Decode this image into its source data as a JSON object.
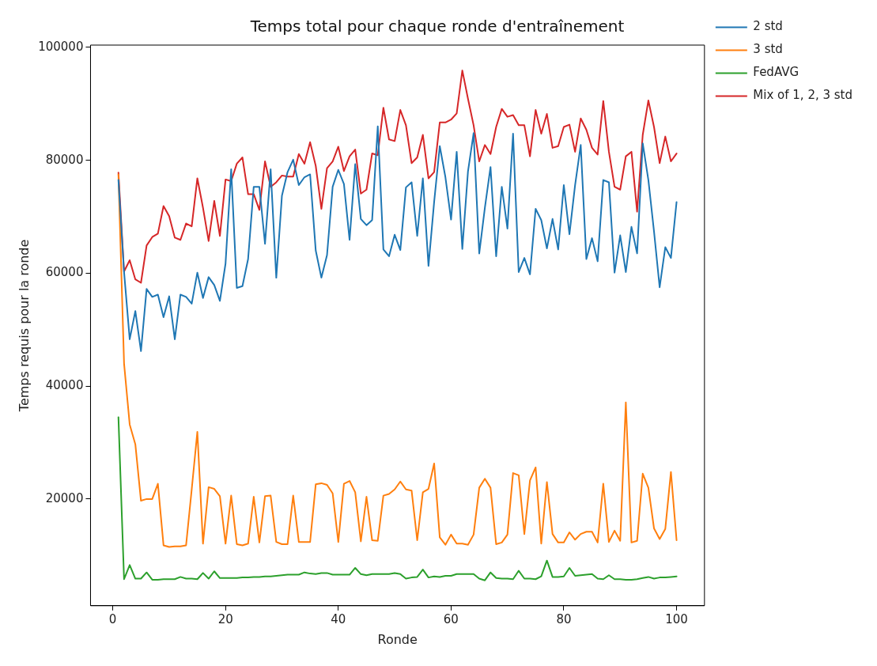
{
  "chart_data": {
    "type": "line",
    "title": "Temps total pour chaque ronde d'entraînement",
    "xlabel": "Ronde",
    "ylabel": "Temps requis pour la ronde",
    "x": [
      1,
      2,
      3,
      4,
      5,
      6,
      7,
      8,
      9,
      10,
      11,
      12,
      13,
      14,
      15,
      16,
      17,
      18,
      19,
      20,
      21,
      22,
      23,
      24,
      25,
      26,
      27,
      28,
      29,
      30,
      31,
      32,
      33,
      34,
      35,
      36,
      37,
      38,
      39,
      40,
      41,
      42,
      43,
      44,
      45,
      46,
      47,
      48,
      49,
      50,
      51,
      52,
      53,
      54,
      55,
      56,
      57,
      58,
      59,
      60,
      61,
      62,
      63,
      64,
      65,
      66,
      67,
      68,
      69,
      70,
      71,
      72,
      73,
      74,
      75,
      76,
      77,
      78,
      79,
      80,
      81,
      82,
      83,
      84,
      85,
      86,
      87,
      88,
      89,
      90,
      91,
      92,
      93,
      94,
      95,
      96,
      97,
      98,
      99,
      100
    ],
    "series": [
      {
        "name": "2 std",
        "color": "#1f77b4",
        "values": [
          76500,
          60200,
          48300,
          53300,
          46200,
          57200,
          55800,
          56200,
          52200,
          55900,
          48300,
          56200,
          55800,
          54600,
          60100,
          55600,
          59300,
          57900,
          55100,
          61700,
          78400,
          57400,
          57700,
          62500,
          75300,
          75300,
          65200,
          78400,
          59200,
          73700,
          77900,
          80100,
          75600,
          77000,
          77500,
          64000,
          59200,
          63200,
          75300,
          78300,
          75800,
          65900,
          79300,
          69600,
          68500,
          69400,
          86000,
          64200,
          63000,
          66800,
          64100,
          75200,
          76100,
          66600,
          76800,
          61300,
          72600,
          82500,
          77000,
          69500,
          81500,
          64300,
          78000,
          84800,
          63500,
          71600,
          78800,
          63000,
          75300,
          67900,
          84700,
          60200,
          62700,
          59800,
          71400,
          69400,
          64400,
          69600,
          64200,
          75600,
          66900,
          75600,
          82700,
          62500,
          66200,
          62100,
          76500,
          76100,
          60100,
          66700,
          60200,
          68200,
          63500,
          83000,
          76500,
          67400,
          57500,
          64600,
          62700,
          72600
        ]
      },
      {
        "name": "3 std",
        "color": "#ff7f0e",
        "values": [
          77500,
          44000,
          33200,
          29700,
          19700,
          20000,
          20000,
          22700,
          11800,
          11500,
          11600,
          11600,
          11800,
          21700,
          31900,
          12100,
          22100,
          21800,
          20500,
          12100,
          20600,
          12000,
          11800,
          12100,
          20400,
          12300,
          20500,
          20600,
          12400,
          12000,
          12000,
          20600,
          12400,
          12400,
          12400,
          22600,
          22800,
          22500,
          21000,
          12400,
          22700,
          23200,
          21200,
          12500,
          20400,
          12700,
          12600,
          20600,
          20900,
          21700,
          23100,
          21700,
          21500,
          12700,
          21200,
          21800,
          26300,
          13200,
          11900,
          13700,
          12100,
          12100,
          11900,
          13700,
          22000,
          23600,
          22000,
          12000,
          12300,
          13700,
          24600,
          24200,
          13800,
          23300,
          25600,
          12100,
          23000,
          13800,
          12300,
          12300,
          14100,
          12800,
          13800,
          14200,
          14200,
          12300,
          22700,
          12400,
          14400,
          12600,
          37100,
          12300,
          12600,
          24500,
          22000,
          14800,
          12900,
          14700,
          24800,
          12700
        ]
      },
      {
        "name": "FedAVG",
        "color": "#2ca02c",
        "values": [
          34500,
          5800,
          8300,
          5900,
          5900,
          7000,
          5700,
          5700,
          5800,
          5800,
          5800,
          6200,
          5900,
          5900,
          5800,
          6900,
          5900,
          7200,
          6000,
          6000,
          6000,
          6000,
          6100,
          6100,
          6200,
          6200,
          6300,
          6300,
          6400,
          6500,
          6600,
          6600,
          6600,
          7000,
          6800,
          6700,
          6900,
          6900,
          6600,
          6600,
          6600,
          6600,
          7800,
          6700,
          6500,
          6700,
          6700,
          6700,
          6700,
          6900,
          6700,
          5900,
          6100,
          6200,
          7500,
          6100,
          6300,
          6200,
          6400,
          6400,
          6700,
          6700,
          6700,
          6700,
          5900,
          5600,
          7000,
          6000,
          5900,
          5900,
          5800,
          7300,
          5900,
          5900,
          5800,
          6300,
          9100,
          6200,
          6200,
          6300,
          7800,
          6400,
          6500,
          6600,
          6700,
          5900,
          5800,
          6500,
          5800,
          5800,
          5700,
          5700,
          5800,
          6000,
          6200,
          5900,
          6100,
          6100,
          6200,
          6300
        ]
      },
      {
        "name": "Mix of 1, 2, 3 std",
        "color": "#d62728",
        "values": [
          77800,
          60300,
          62300,
          58900,
          58300,
          64900,
          66400,
          67000,
          71900,
          70100,
          66300,
          65900,
          68800,
          68300,
          76800,
          71600,
          65700,
          72800,
          66600,
          76600,
          76300,
          79400,
          80500,
          74000,
          74000,
          71200,
          79800,
          75300,
          76100,
          77300,
          77100,
          77100,
          81100,
          79400,
          83200,
          79000,
          71400,
          78600,
          79800,
          82400,
          78100,
          80700,
          81900,
          74100,
          74800,
          81200,
          80900,
          89300,
          83700,
          83400,
          88900,
          86200,
          79500,
          80500,
          84500,
          76800,
          77900,
          86700,
          86700,
          87200,
          88300,
          95900,
          90900,
          86200,
          79800,
          82700,
          81100,
          85900,
          89100,
          87700,
          88000,
          86200,
          86200,
          80700,
          88900,
          84700,
          88200,
          82200,
          82500,
          85900,
          86300,
          81500,
          87400,
          85400,
          82200,
          81000,
          90500,
          81500,
          75300,
          74800,
          80700,
          81500,
          70900,
          84500,
          90600,
          85900,
          79500,
          84200,
          79800,
          81200
        ]
      }
    ],
    "xlim": [
      -3.95,
      104.95
    ],
    "xticks": [
      0,
      20,
      40,
      60,
      80,
      100
    ],
    "ylim": [
      1100,
      100400
    ],
    "yticks": [
      20000,
      40000,
      60000,
      80000,
      100000
    ],
    "legend": "right",
    "marker": "none",
    "line_style": "solid"
  }
}
